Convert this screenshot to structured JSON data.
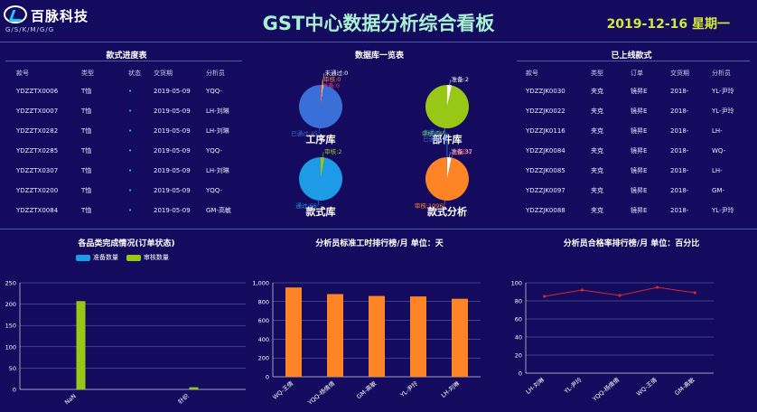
{
  "header": {
    "logo_name": "百脉科技",
    "logo_sub": "G/S/K/M/G/G",
    "title": "GST中心数据分析综合看板",
    "date": "2019-12-16 星期一"
  },
  "colors": {
    "bg": "#140a5e",
    "blue": "#1e9be6",
    "green": "#99c715",
    "orange": "#ff8426",
    "line": "#d9262c"
  },
  "progress": {
    "title": "款式进度表",
    "headers": [
      "款号",
      "类型",
      "状态",
      "交货期",
      "分析员"
    ],
    "rows": [
      [
        "YDZZTX0006",
        "T恤",
        "•",
        "2019-05-09",
        "YQQ-"
      ],
      [
        "YDZZTX0007",
        "T恤",
        "•",
        "2019-05-09",
        "LH-刘琳"
      ],
      [
        "YDZZTX0282",
        "T恤",
        "•",
        "2019-05-09",
        "LH-刘琳"
      ],
      [
        "YDZZTX0285",
        "T恤",
        "•",
        "2019-05-09",
        "YQQ-"
      ],
      [
        "YDZZTX0307",
        "T恤",
        "•",
        "2019-05-09",
        "LH-刘琳"
      ],
      [
        "YDZZTX0200",
        "T恤",
        "•",
        "2019-05-09",
        "YQQ-"
      ],
      [
        "YDZZTX0084",
        "T恤",
        "•",
        "2019-05-09",
        "GM-高敏"
      ]
    ]
  },
  "database": {
    "title": "数据库一览表",
    "pies": [
      {
        "name": "工序库",
        "slices": [
          {
            "label": "准备:0",
            "value": 0.3,
            "color": "#ff3366"
          },
          {
            "label": "审核:0",
            "value": 0.3,
            "color": "#ff8426"
          },
          {
            "label": "未通过:0",
            "value": 0.3,
            "color": "#ffffff"
          },
          {
            "label": "已通过:45",
            "value": 45,
            "color": "#3a6fd8"
          }
        ]
      },
      {
        "name": "部件库",
        "slices": [
          {
            "label": "准备:2",
            "value": 2,
            "color": "#ffffff"
          },
          {
            "label": "审核:56",
            "value": 56,
            "color": "#99c715"
          }
        ]
      },
      {
        "name": "款式库",
        "slices": [
          {
            "label": "审核:2",
            "value": 2,
            "color": "#99c715"
          },
          {
            "label": "通过:66",
            "value": 66,
            "color": "#1e9be6"
          }
        ]
      },
      {
        "name": "款式分析",
        "slices": [
          {
            "label": "准备:37",
            "value": 37,
            "color": "#ffffff"
          },
          {
            "label": "驳回:0",
            "value": 0.5,
            "color": "#ff3366"
          },
          {
            "label": "审核:1096",
            "value": 1096,
            "color": "#ff8426"
          },
          {
            "label": "已通过:0",
            "value": 0.5,
            "color": "#3a6fd8"
          },
          {
            "label": "未通过:0",
            "value": 0.5,
            "color": "#1e9be6"
          }
        ]
      }
    ]
  },
  "online": {
    "title": "已上线款式",
    "headers": [
      "款号",
      "类型",
      "订单",
      "交货期",
      "分析员"
    ],
    "rows": [
      [
        "YDZZJK0030",
        "夹克",
        "镜昇E",
        "2018-",
        "YL-尹玲"
      ],
      [
        "YDZZJK0022",
        "夹克",
        "镜昇E",
        "2018-",
        "YL-尹玲"
      ],
      [
        "YDZZJK0116",
        "夹克",
        "镜昇E",
        "2018-",
        "LH-"
      ],
      [
        "YDZZJK0084",
        "夹克",
        "镜昇E",
        "2018-",
        "WQ-"
      ],
      [
        "YDZZJK0085",
        "夹克",
        "镜昇E",
        "2018-",
        "LH-"
      ],
      [
        "YDZZJK0097",
        "夹克",
        "镜昇E",
        "2018-",
        "GM-"
      ],
      [
        "YDZZJK0088",
        "夹克",
        "镜昇E",
        "2018-",
        "YL-尹玲"
      ]
    ]
  },
  "chart_data": [
    {
      "type": "bar",
      "title": "各品类完成情况(订单状态)",
      "categories": [
        "NaN",
        "针织"
      ],
      "series": [
        {
          "name": "准备数量",
          "values": [
            0,
            0
          ]
        },
        {
          "name": "审核数量",
          "values": [
            207,
            5
          ]
        }
      ],
      "ylim": [
        0,
        250
      ],
      "yticks": [
        0,
        50,
        100,
        150,
        200,
        250
      ],
      "legend": "top-center"
    },
    {
      "type": "bar",
      "title": "分析员标准工时排行榜/月 单位：天",
      "categories": [
        "WQ-王倩",
        "YQQ-杨倩倩",
        "GM-高敏",
        "YL-尹玲",
        "LH-刘琳"
      ],
      "values": [
        950,
        880,
        860,
        855,
        830
      ],
      "ylim": [
        0,
        1000
      ],
      "yticks": [
        0,
        200,
        400,
        600,
        800,
        1000
      ],
      "ytick_labels": [
        "0",
        "200",
        "400",
        "600",
        "800",
        "1,000"
      ]
    },
    {
      "type": "line",
      "title": "分析员合格率排行榜/月 单位：百分比",
      "categories": [
        "LH-刘琳",
        "YL-尹玲",
        "YQQ-杨倩倩",
        "WQ-王倩",
        "GM-高敏"
      ],
      "values": [
        85,
        92,
        86,
        95,
        89
      ],
      "ylim": [
        0,
        100
      ],
      "yticks": [
        0,
        20,
        40,
        60,
        80,
        100
      ]
    }
  ]
}
